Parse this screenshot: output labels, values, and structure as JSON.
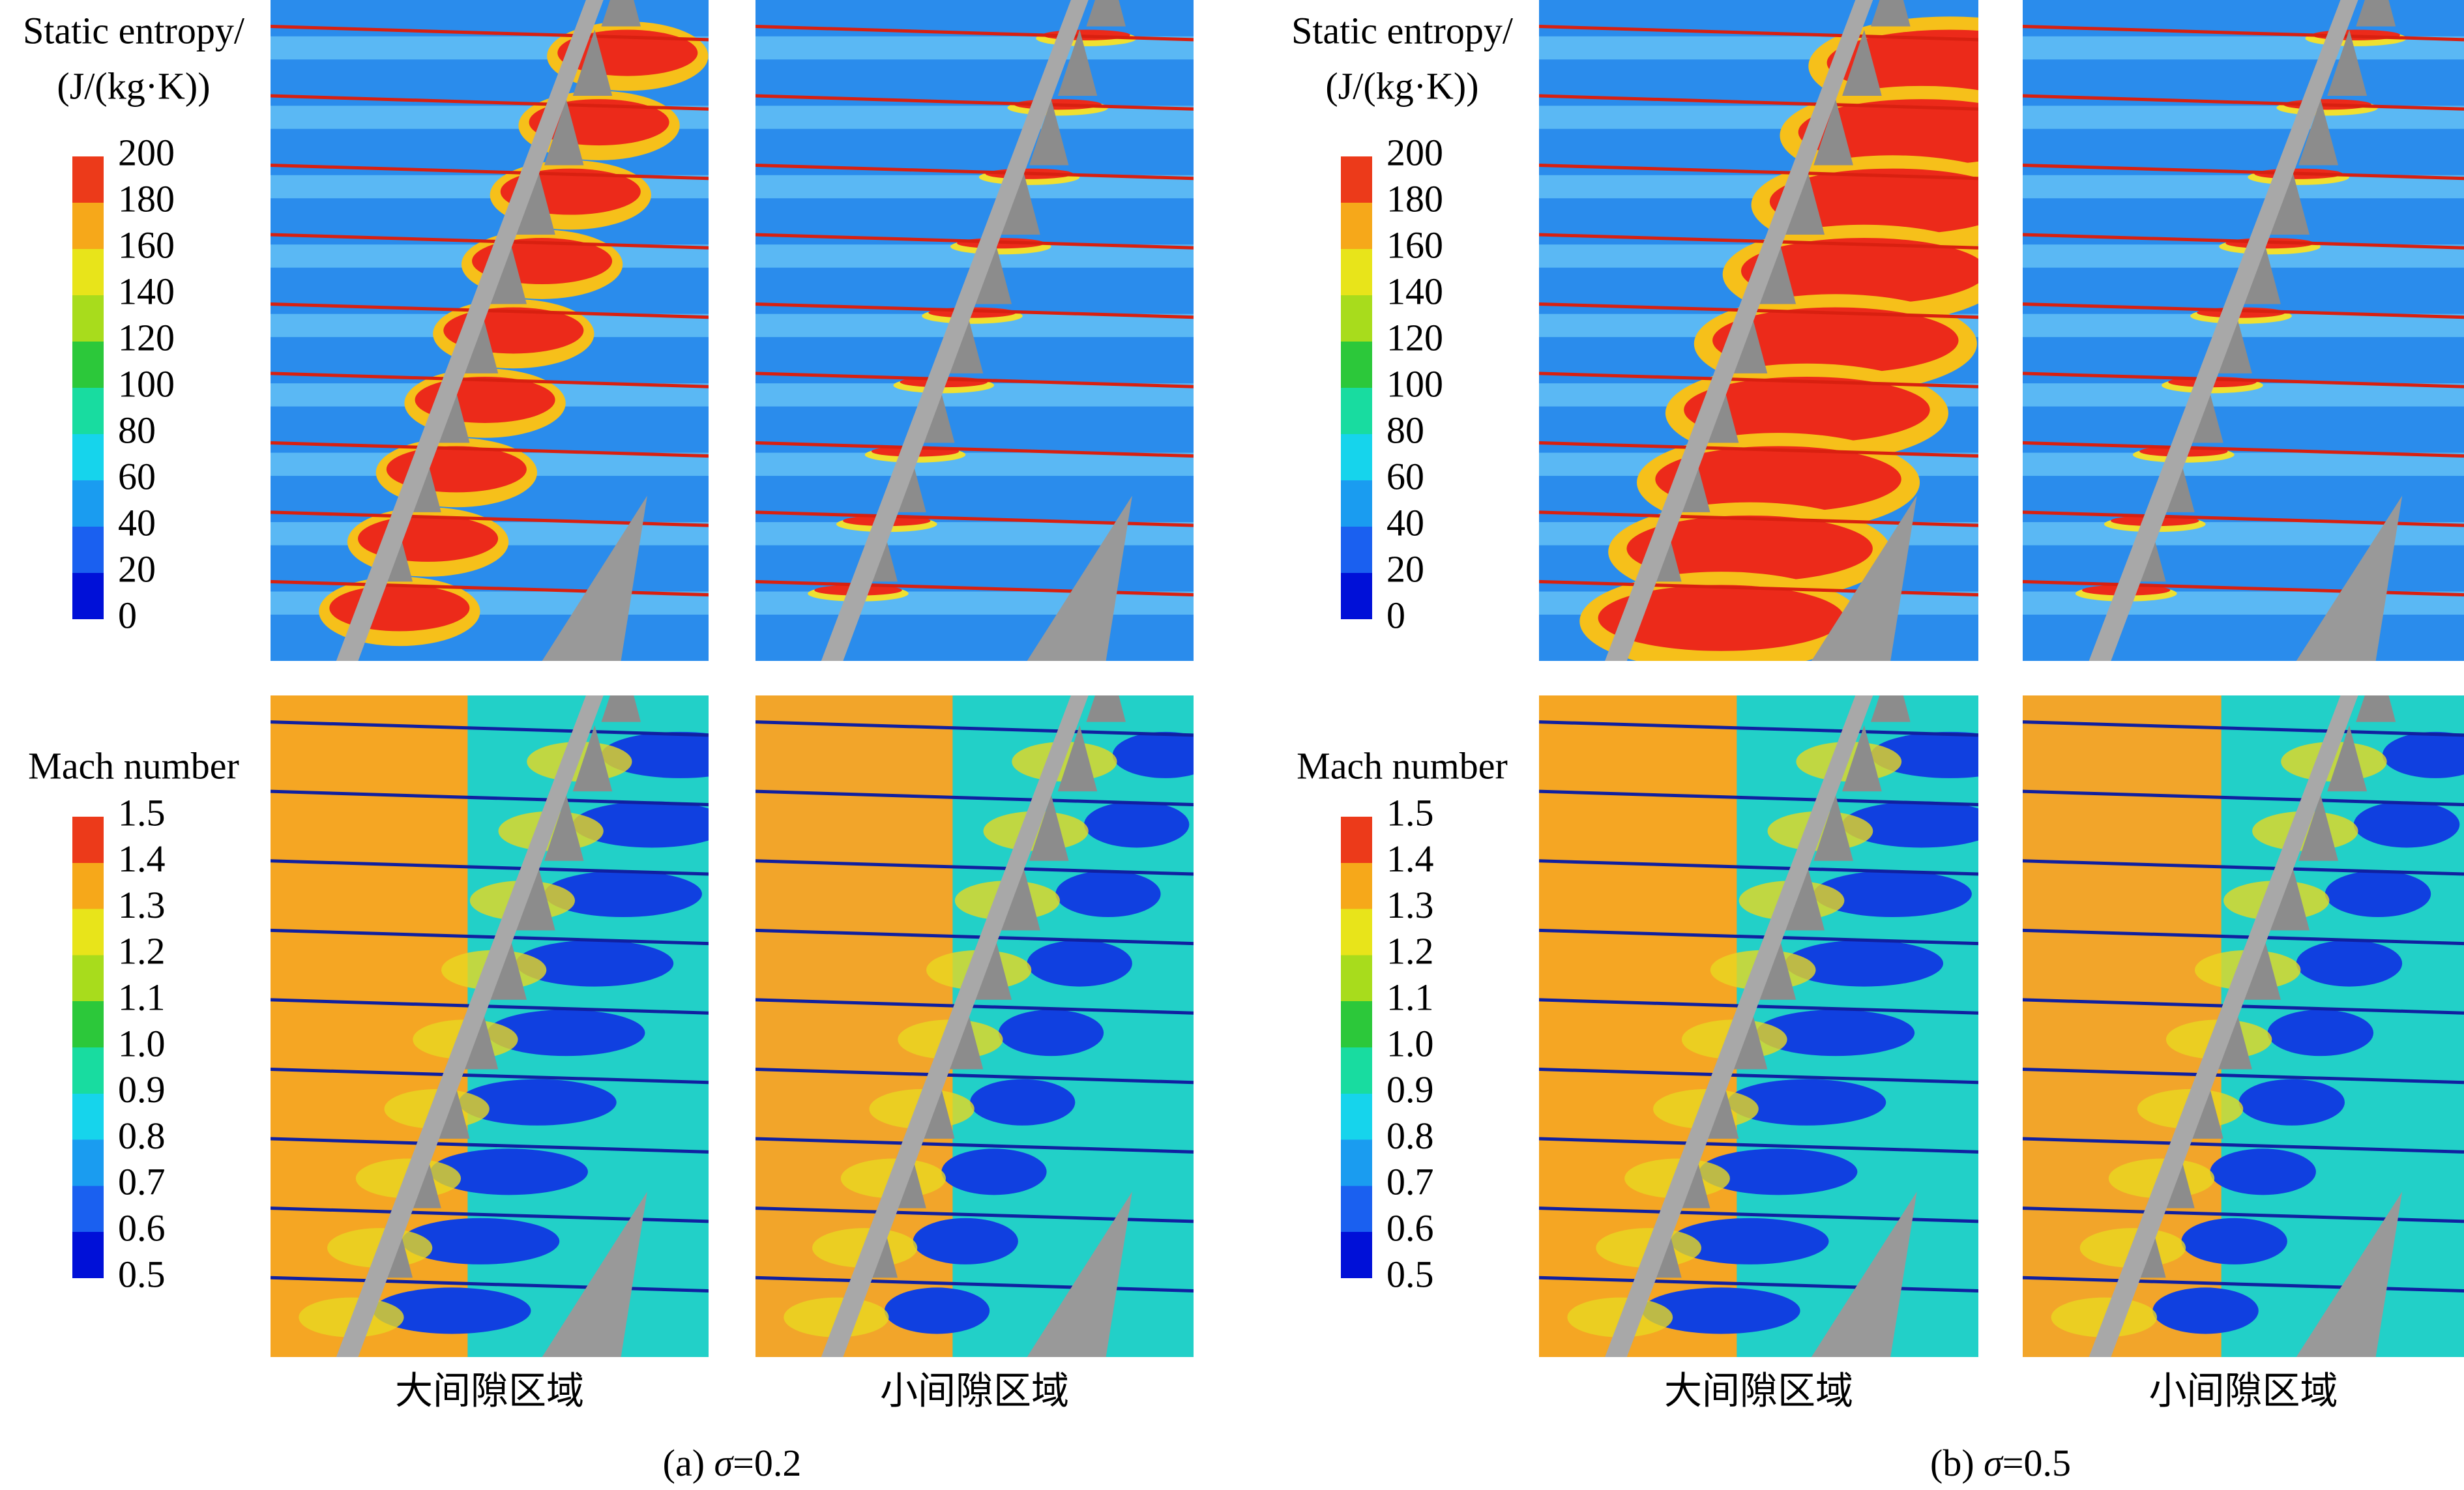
{
  "panels": [
    {
      "caption": {
        "label": "(a)",
        "symbol": "σ",
        "value": "=0.2"
      },
      "entropy_legend": {
        "title": [
          "Static entropy/",
          "(J/(kg·K))"
        ],
        "lim": [
          0,
          200
        ],
        "ticks": [
          0,
          20,
          40,
          60,
          80,
          100,
          120,
          140,
          160,
          180,
          200
        ]
      },
      "mach_legend": {
        "title": [
          "Mach number"
        ],
        "lim": [
          0.5,
          1.5
        ],
        "ticks": [
          0.5,
          0.6,
          0.7,
          0.8,
          0.9,
          {
            "value": 1,
            "label": "1.0"
          },
          1.1,
          1.2,
          1.3,
          1.4,
          1.5
        ]
      },
      "columns": [
        "大间隙区域",
        "小间隙区域"
      ]
    },
    {
      "caption": {
        "label": "(b)",
        "symbol": "σ",
        "value": "=0.5"
      },
      "entropy_legend": {
        "title": [
          "Static entropy/",
          "(J/(kg·K))"
        ],
        "lim": [
          0,
          200
        ],
        "ticks": [
          0,
          20,
          40,
          60,
          80,
          100,
          120,
          140,
          160,
          180,
          200
        ]
      },
      "mach_legend": {
        "title": [
          "Mach number"
        ],
        "lim": [
          0.5,
          1.5
        ],
        "ticks": [
          0.5,
          0.6,
          0.7,
          0.8,
          0.9,
          {
            "value": 1,
            "label": "1.0"
          },
          1.1,
          1.2,
          1.3,
          1.4,
          1.5
        ]
      },
      "columns": [
        "大间隙区域",
        "小间隙区域"
      ]
    }
  ]
}
